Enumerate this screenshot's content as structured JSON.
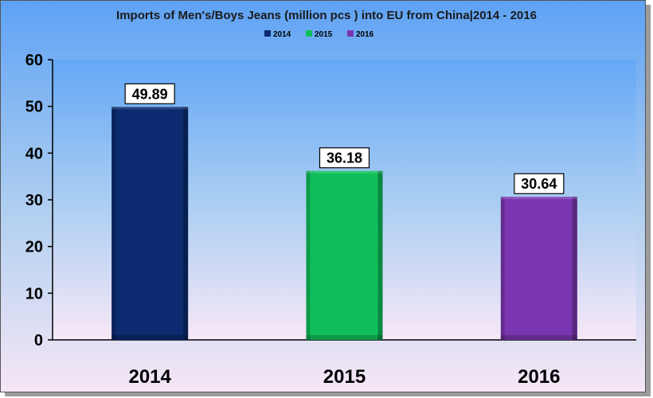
{
  "chart_data": {
    "type": "bar",
    "title": "Imports of Men's/Boys Jeans (million pcs ) into EU from China|2014 - 2016",
    "xlabel": "",
    "ylabel": "",
    "ylim": [
      0,
      60
    ],
    "yticks": [
      "0",
      "10",
      "20",
      "30",
      "40",
      "50",
      "60"
    ],
    "categories": [
      "2014",
      "2015",
      "2016"
    ],
    "series": [
      {
        "name": "2014",
        "values": [
          49.89,
          null,
          null
        ],
        "color": "#0b2a6f"
      },
      {
        "name": "2015",
        "values": [
          null,
          36.18,
          null
        ],
        "color": "#0fbe5a"
      },
      {
        "name": "2016",
        "values": [
          null,
          null,
          30.64
        ],
        "color": "#7a36b0"
      }
    ],
    "data_labels": [
      "49.89",
      "36.18",
      "30.64"
    ],
    "legend_position": "top-center",
    "grid": false
  }
}
